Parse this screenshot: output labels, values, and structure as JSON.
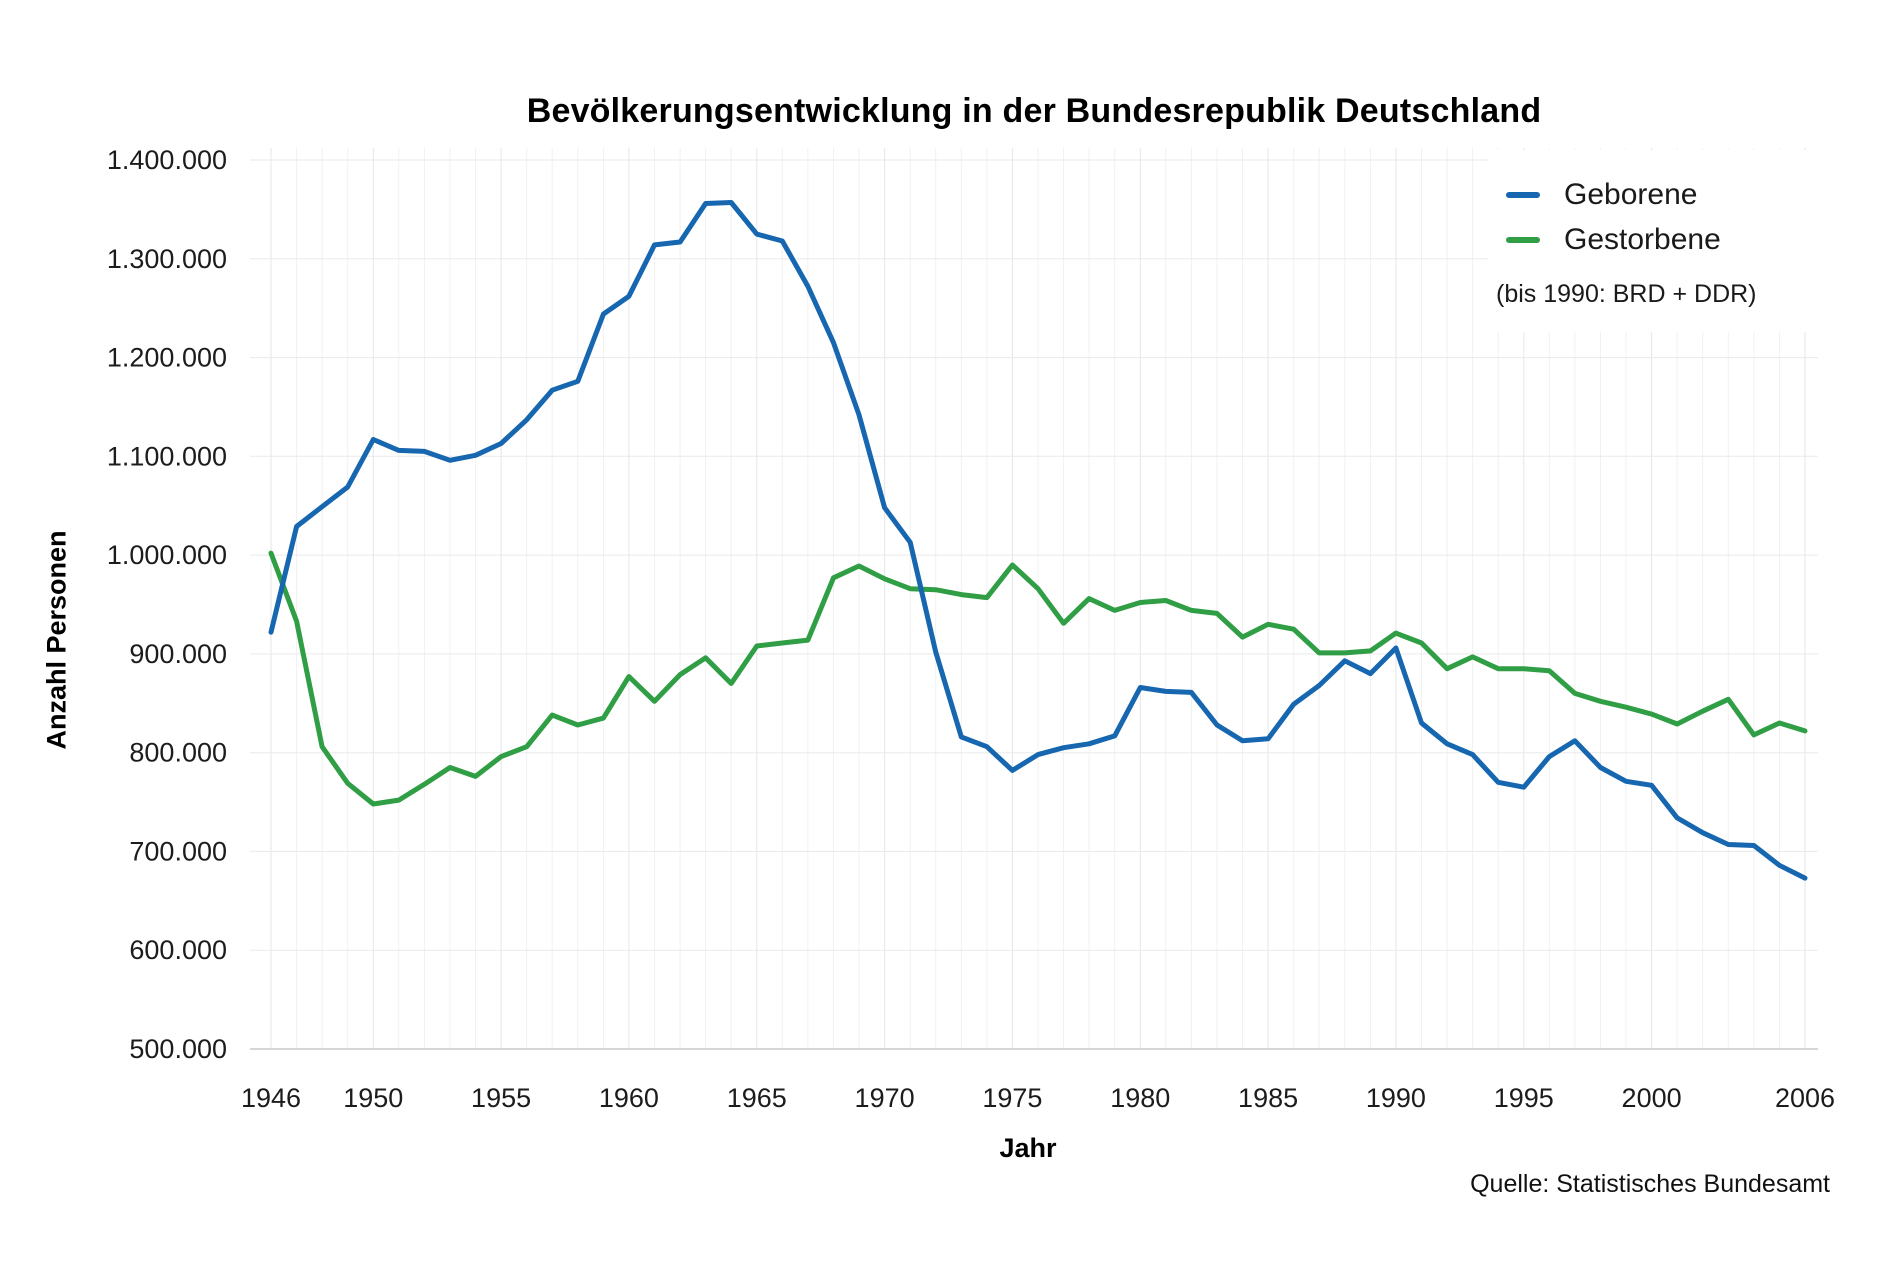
{
  "title": "Bevölkerungsentwicklung in der Bundesrepublik Deutschland",
  "source": "Quelle: Statistisches Bundesamt",
  "chart_data": {
    "type": "line",
    "title": "Bevölkerungsentwicklung in der Bundesrepublik Deutschland",
    "xlabel": "Jahr",
    "ylabel": "Anzahl Personen",
    "legend_note": "(bis 1990: BRD + DDR)",
    "legend_position": "top-right",
    "grid": true,
    "background": "#ffffff",
    "xlim": [
      1946,
      2006
    ],
    "ylim": [
      500000,
      1400000
    ],
    "xticks": [
      1946,
      1950,
      1955,
      1960,
      1965,
      1970,
      1975,
      1980,
      1985,
      1990,
      1995,
      2000,
      2006
    ],
    "yticks": [
      500000,
      600000,
      700000,
      800000,
      900000,
      1000000,
      1100000,
      1200000,
      1300000,
      1400000
    ],
    "ytick_labels": [
      "500.000",
      "600.000",
      "700.000",
      "800.000",
      "900.000",
      "1.000.000",
      "1.100.000",
      "1.200.000",
      "1.300.000",
      "1.400.000"
    ],
    "x": [
      1946,
      1947,
      1948,
      1949,
      1950,
      1951,
      1952,
      1953,
      1954,
      1955,
      1956,
      1957,
      1958,
      1959,
      1960,
      1961,
      1962,
      1963,
      1964,
      1965,
      1966,
      1967,
      1968,
      1969,
      1970,
      1971,
      1972,
      1973,
      1974,
      1975,
      1976,
      1977,
      1978,
      1979,
      1980,
      1981,
      1982,
      1983,
      1984,
      1985,
      1986,
      1987,
      1988,
      1989,
      1990,
      1991,
      1992,
      1993,
      1994,
      1995,
      1996,
      1997,
      1998,
      1999,
      2000,
      2001,
      2002,
      2003,
      2004,
      2005,
      2006
    ],
    "series": [
      {
        "name": "Geborene",
        "color": "#1666b0",
        "values": [
          922000,
          1029000,
          1049000,
          1069000,
          1117000,
          1106000,
          1105000,
          1096000,
          1101000,
          1113000,
          1137000,
          1167000,
          1176000,
          1244000,
          1262000,
          1314000,
          1317000,
          1356000,
          1357000,
          1325000,
          1318000,
          1272000,
          1215000,
          1142000,
          1048000,
          1013000,
          902000,
          816000,
          806000,
          782000,
          798000,
          805000,
          809000,
          817000,
          866000,
          862000,
          861000,
          828000,
          812000,
          814000,
          849000,
          868000,
          893000,
          880000,
          906000,
          830000,
          809000,
          798000,
          770000,
          765000,
          796000,
          812000,
          785000,
          771000,
          767000,
          734000,
          719000,
          707000,
          706000,
          686000,
          673000
        ]
      },
      {
        "name": "Gestorbene",
        "color": "#2f9e44",
        "values": [
          1002000,
          933000,
          806000,
          769000,
          748000,
          752000,
          768000,
          785000,
          776000,
          796000,
          806000,
          838000,
          828000,
          835000,
          877000,
          852000,
          879000,
          896000,
          870000,
          908000,
          911000,
          914000,
          977000,
          989000,
          976000,
          966000,
          965000,
          960000,
          957000,
          990000,
          966000,
          931000,
          956000,
          944000,
          952000,
          954000,
          944000,
          941000,
          917000,
          930000,
          925000,
          901000,
          901000,
          903000,
          921000,
          911000,
          885000,
          897000,
          885000,
          885000,
          883000,
          860000,
          852000,
          846000,
          839000,
          829000,
          842000,
          854000,
          818000,
          830000,
          822000
        ]
      }
    ]
  }
}
